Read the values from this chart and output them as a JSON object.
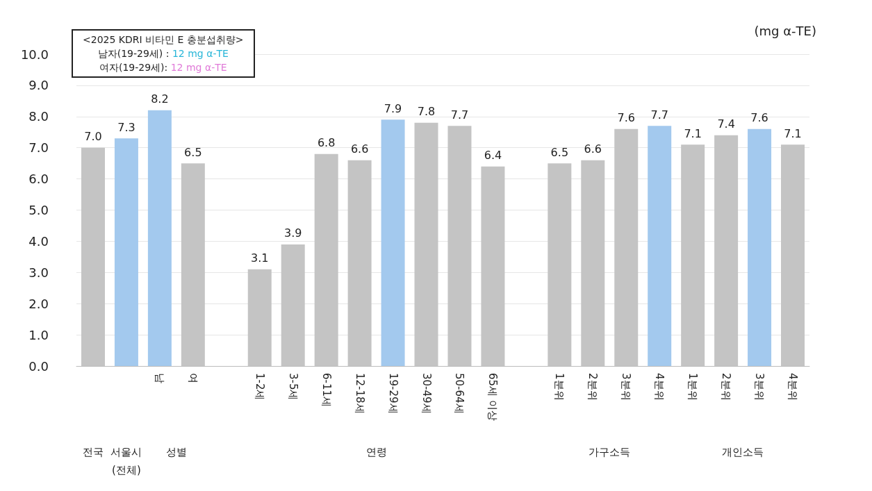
{
  "chart_data": {
    "type": "bar",
    "ylabel": "(mg α-TE)",
    "categories": [
      null,
      null,
      "남",
      "여",
      null,
      "1-2세",
      "3-5세",
      "6-11세",
      "12-18세",
      "19-29세",
      "30-49세",
      "50-64세",
      "65세 이상",
      null,
      "1분위",
      "2분위",
      "3분위",
      "4분위",
      "1분위",
      "2분위",
      "3분위",
      "4분위"
    ],
    "values": [
      7.0,
      7.3,
      8.2,
      6.5,
      null,
      3.1,
      3.9,
      6.8,
      6.6,
      7.9,
      7.8,
      7.7,
      6.4,
      null,
      6.5,
      6.6,
      7.6,
      7.7,
      7.1,
      7.4,
      7.6,
      7.1
    ],
    "value_labels": [
      "7.0",
      "7.3",
      "8.2",
      "6.5",
      null,
      "3.1",
      "3.9",
      "6.8",
      "6.6",
      "7.9",
      "7.8",
      "7.7",
      "6.4",
      null,
      "6.5",
      "6.6",
      "7.6",
      "7.7",
      "7.1",
      "7.4",
      "7.6",
      "7.1"
    ],
    "colors": [
      "#c4c4c4",
      "#a3c9ee",
      "#a3c9ee",
      "#c4c4c4",
      null,
      "#c4c4c4",
      "#c4c4c4",
      "#c4c4c4",
      "#c4c4c4",
      "#a3c9ee",
      "#c4c4c4",
      "#c4c4c4",
      "#c4c4c4",
      null,
      "#c4c4c4",
      "#c4c4c4",
      "#c4c4c4",
      "#a3c9ee",
      "#c4c4c4",
      "#c4c4c4",
      "#a3c9ee",
      "#c4c4c4"
    ],
    "ylim": [
      0,
      10
    ],
    "yticks": [
      {
        "value": 0,
        "label": "0.0"
      },
      {
        "value": 1,
        "label": "1.0"
      },
      {
        "value": 2,
        "label": "2.0"
      },
      {
        "value": 3,
        "label": "3.0"
      },
      {
        "value": 4,
        "label": "4.0"
      },
      {
        "value": 5,
        "label": "5.0"
      },
      {
        "value": 6,
        "label": "6.0"
      },
      {
        "value": 7,
        "label": "7.0"
      },
      {
        "value": 8,
        "label": "8.0"
      },
      {
        "value": 9,
        "label": "9.0"
      },
      {
        "value": 10,
        "label": "10.0"
      }
    ],
    "grid": "y",
    "annotations": [
      "<2025 KDRI 비타민 E 충분섭취량>",
      "남자(19-29세) : ",
      "12 mg α-TE",
      "여자(19-29세): ",
      "12 mg α-TE",
      "전국",
      "서울시\n(전체)",
      "성별",
      "연령",
      "가구소득",
      "개인소득"
    ]
  }
}
